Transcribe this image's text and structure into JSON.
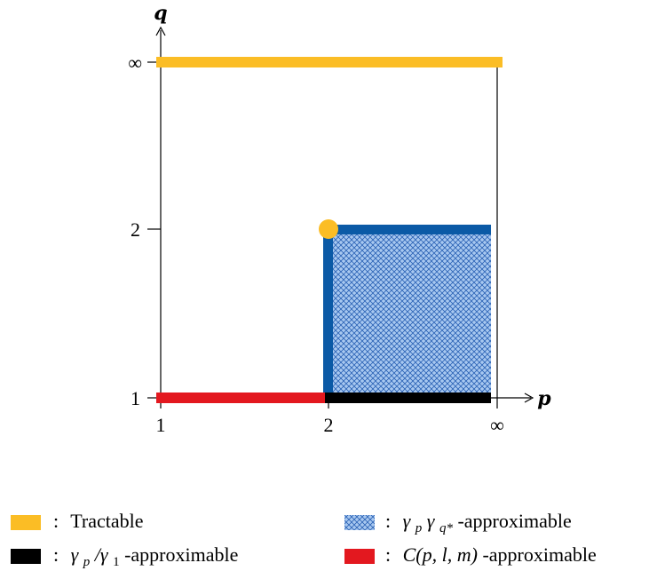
{
  "axes": {
    "x_label": "p",
    "y_label": "q",
    "x_ticks": [
      "1",
      "2",
      "∞"
    ],
    "y_ticks": [
      "1",
      "2",
      "∞"
    ]
  },
  "colors": {
    "tractable": "#fbbd25",
    "black": "#000000",
    "blue": "#0b5aa6",
    "hatch_bg": "#a8c8f0",
    "hatch_line": "#2a62b5",
    "red": "#e3181f"
  },
  "legend": [
    {
      "swatch": "tractable",
      "separator": ":",
      "text": "Tractable"
    },
    {
      "swatch": "hatch",
      "separator": ":",
      "text": "γ",
      "sub": "p",
      "text2": "γ",
      "sub2": "q*",
      "suffix": "-approximable"
    },
    {
      "swatch": "black",
      "separator": ":",
      "text": "γ",
      "sub": "p",
      "text2": "/γ",
      "sub2": "1",
      "suffix": "-approximable"
    },
    {
      "swatch": "red",
      "separator": ":",
      "text": "C(p, l, m)",
      "suffix": "-approximable"
    }
  ]
}
